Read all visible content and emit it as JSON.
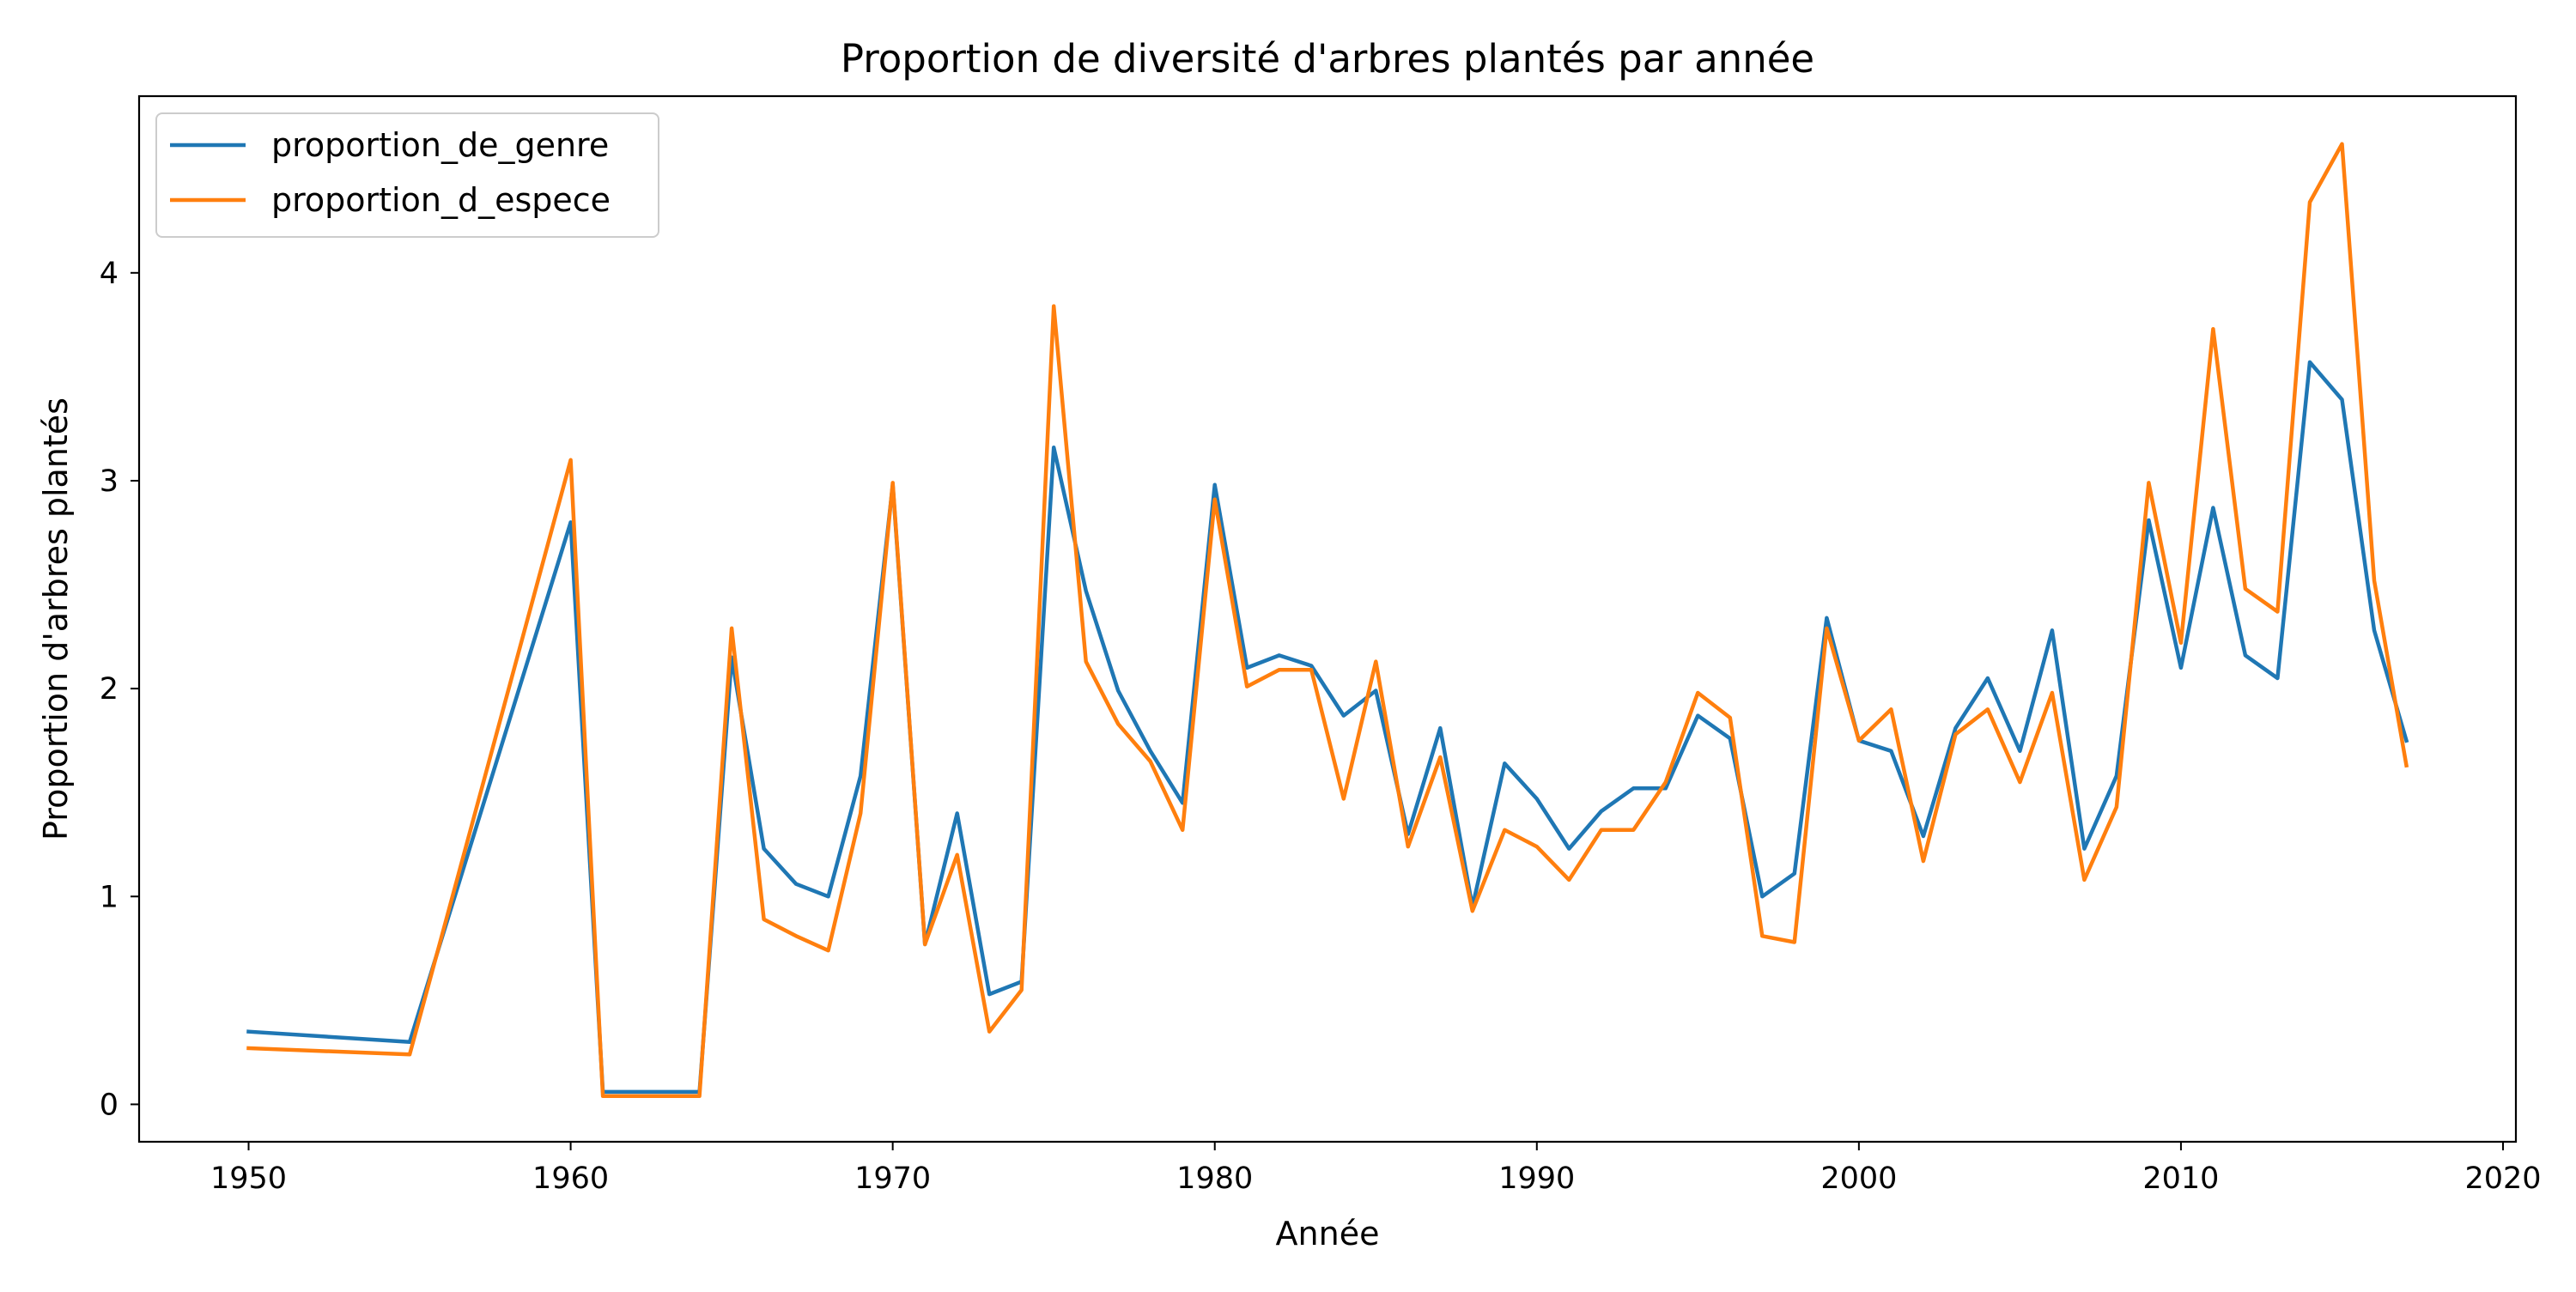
{
  "chart_data": {
    "type": "line",
    "title": "Proportion de diversité d'arbres plantés par année",
    "xlabel": "Année",
    "ylabel": "Proportion d'arbres plantés",
    "xlim": [
      1946.6,
      2020.4
    ],
    "ylim": [
      -0.18,
      4.85
    ],
    "xticks": [
      1950,
      1960,
      1970,
      1980,
      1990,
      2000,
      2010,
      2020
    ],
    "yticks": [
      0,
      1,
      2,
      3,
      4
    ],
    "grid": false,
    "legend_position": "top-left",
    "x": [
      1950,
      1955,
      1960,
      1961,
      1964,
      1965,
      1966,
      1967,
      1968,
      1969,
      1970,
      1971,
      1972,
      1973,
      1974,
      1975,
      1976,
      1977,
      1978,
      1979,
      1980,
      1981,
      1982,
      1983,
      1984,
      1985,
      1986,
      1987,
      1988,
      1989,
      1990,
      1991,
      1992,
      1993,
      1994,
      1995,
      1996,
      1997,
      1998,
      1999,
      2000,
      2001,
      2002,
      2003,
      2004,
      2005,
      2006,
      2007,
      2008,
      2009,
      2010,
      2011,
      2012,
      2013,
      2014,
      2015,
      2016,
      2017
    ],
    "series": [
      {
        "name": "proportion_de_genre",
        "color": "#1f77b4",
        "values": [
          0.35,
          0.3,
          2.8,
          0.06,
          0.06,
          2.15,
          1.23,
          1.06,
          1.0,
          1.58,
          2.98,
          0.77,
          1.4,
          0.53,
          0.59,
          3.16,
          2.47,
          1.99,
          1.7,
          1.45,
          2.98,
          2.1,
          2.16,
          2.11,
          1.87,
          1.99,
          1.3,
          1.81,
          0.95,
          1.64,
          1.47,
          1.23,
          1.41,
          1.52,
          1.52,
          1.87,
          1.76,
          1.0,
          1.11,
          2.34,
          1.75,
          1.7,
          1.29,
          1.81,
          2.05,
          1.7,
          2.28,
          1.23,
          1.58,
          2.81,
          2.1,
          2.87,
          2.16,
          2.05,
          3.57,
          3.39,
          2.28,
          1.75
        ]
      },
      {
        "name": "proportion_d_espece",
        "color": "#ff7f0e",
        "values": [
          0.27,
          0.24,
          3.1,
          0.04,
          0.04,
          2.29,
          0.89,
          0.81,
          0.74,
          1.4,
          2.99,
          0.77,
          1.2,
          0.35,
          0.55,
          3.84,
          2.13,
          1.83,
          1.65,
          1.32,
          2.91,
          2.01,
          2.09,
          2.09,
          1.47,
          2.13,
          1.24,
          1.67,
          0.93,
          1.32,
          1.24,
          1.08,
          1.32,
          1.32,
          1.55,
          1.98,
          1.86,
          0.81,
          0.78,
          2.29,
          1.75,
          1.9,
          1.17,
          1.78,
          1.9,
          1.55,
          1.98,
          1.08,
          1.43,
          2.99,
          2.22,
          3.73,
          2.48,
          2.37,
          4.34,
          4.62,
          2.52,
          1.63
        ]
      }
    ]
  }
}
